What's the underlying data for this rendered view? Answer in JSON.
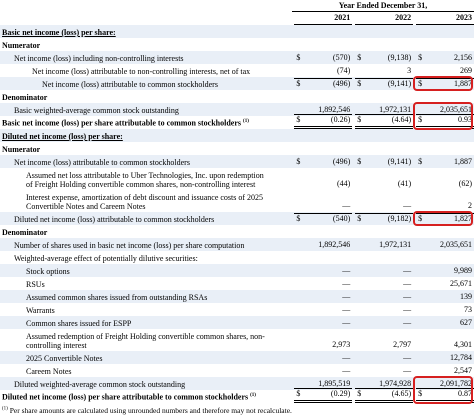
{
  "table": {
    "header": "Year Ended December 31,",
    "years": [
      "2021",
      "2022",
      "2023"
    ],
    "rows": [
      {
        "label": "Basic net income (loss) per share:"
      },
      {
        "label": "Numerator"
      },
      {
        "label": "Net income (loss) including non-controlling interests",
        "currency": "$",
        "values": [
          "(570)",
          "(9,138)",
          "2,156"
        ]
      },
      {
        "label": "Net income (loss) attributable to non-controlling interests, net of tax",
        "values": [
          "(74)",
          "3",
          "269"
        ]
      },
      {
        "label": "Net income (loss) attributable to common stockholders",
        "currency": "$",
        "values": [
          "(496)",
          "(9,141)",
          "1,887"
        ]
      },
      {
        "label": "Denominator"
      },
      {
        "label": "Basic weighted-average common stock outstanding",
        "values": [
          "1,892,546",
          "1,972,131",
          "2,035,651"
        ]
      },
      {
        "label": "Basic net income (loss) per share attributable to common stockholders",
        "note": "(1)",
        "currency": "$",
        "values": [
          "(0.26)",
          "(4.64)",
          "0.93"
        ]
      },
      {
        "label": "Diluted net income (loss) per share:"
      },
      {
        "label": "Numerator"
      },
      {
        "label": "Net income (loss) attributable to common stockholders",
        "currency": "$",
        "values": [
          "(496)",
          "(9,141)",
          "1,887"
        ]
      },
      {
        "label": "Assumed net loss attributable to Uber Technologies, Inc. upon redemption of Freight Holding convertible common shares, non-controlling interest",
        "values": [
          "(44)",
          "(41)",
          "(62)"
        ]
      },
      {
        "label": "Interest expense, amortization of debt discount and issuance costs of 2025 Convertible Notes and Careem Notes",
        "values": [
          "—",
          "—",
          "2"
        ]
      },
      {
        "label": "Diluted net income (loss) attributable to common stockholders",
        "currency": "$",
        "values": [
          "(540)",
          "(9,182)",
          "1,827"
        ]
      },
      {
        "label": "Denominator"
      },
      {
        "label": "Number of shares used in basic net income (loss) per share computation",
        "values": [
          "1,892,546",
          "1,972,131",
          "2,035,651"
        ]
      },
      {
        "label": "Weighted-average effect of potentially dilutive securities:"
      },
      {
        "label": "Stock options",
        "values": [
          "—",
          "—",
          "9,989"
        ]
      },
      {
        "label": "RSUs",
        "values": [
          "—",
          "—",
          "25,671"
        ]
      },
      {
        "label": "Assumed common shares issued from outstanding RSAs",
        "values": [
          "—",
          "—",
          "139"
        ]
      },
      {
        "label": "Warrants",
        "values": [
          "—",
          "—",
          "73"
        ]
      },
      {
        "label": "Common shares issued for ESPP",
        "values": [
          "—",
          "—",
          "627"
        ]
      },
      {
        "label": "Assumed redemption of Freight Holding convertible common shares, non-controlling interest",
        "values": [
          "2,973",
          "2,797",
          "4,301"
        ]
      },
      {
        "label": "2025 Convertible Notes",
        "values": [
          "—",
          "—",
          "12,784"
        ]
      },
      {
        "label": "Careem Notes",
        "values": [
          "—",
          "—",
          "2,547"
        ]
      },
      {
        "label": "Diluted weighted-average common stock outstanding",
        "values": [
          "1,895,519",
          "1,974,928",
          "2,091,782"
        ]
      },
      {
        "label": "Diluted net income (loss) per share attributable to common stockholders",
        "note": "(1)",
        "currency": "$",
        "values": [
          "(0.29)",
          "(4.65)",
          "0.87"
        ]
      }
    ],
    "footnote": {
      "mark": "(1)",
      "text": "Per share amounts are calculated using unrounded numbers and therefore may not recalculate."
    }
  }
}
